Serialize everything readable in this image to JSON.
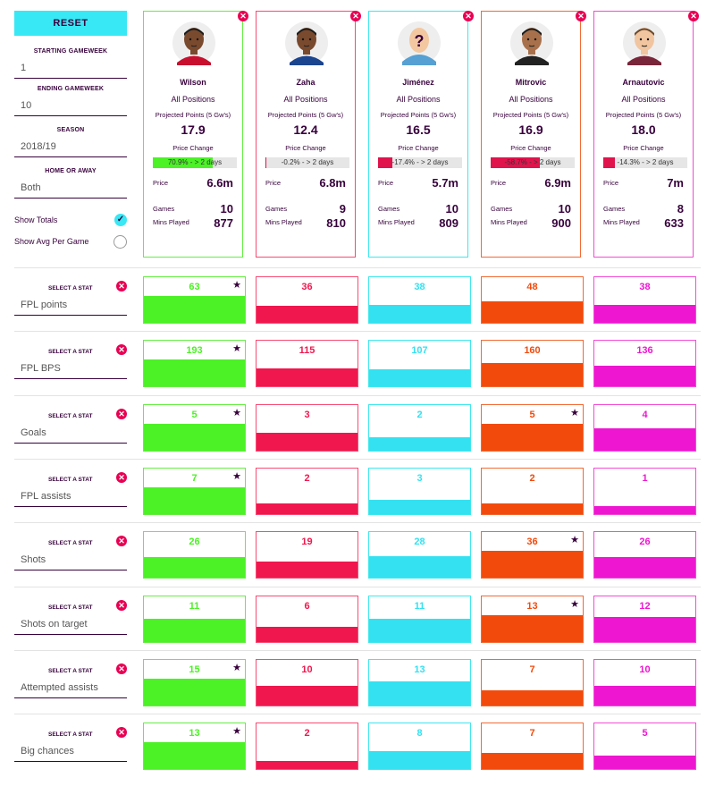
{
  "sidebar": {
    "reset_label": "RESET",
    "starting_gameweek": {
      "label": "STARTING GAMEWEEK",
      "value": "1"
    },
    "ending_gameweek": {
      "label": "ENDING GAMEWEEK",
      "value": "10"
    },
    "season": {
      "label": "SEASON",
      "value": "2018/19"
    },
    "home_away": {
      "label": "HOME OR AWAY",
      "value": "Both"
    },
    "show_totals": {
      "label": "Show Totals",
      "checked": true
    },
    "show_avg": {
      "label": "Show Avg Per Game",
      "checked": false
    }
  },
  "colors": {
    "player0": "#4cf126",
    "player1": "#f0174e",
    "player2": "#34e1f0",
    "player3": "#f24a0c",
    "player4": "#ee16d1",
    "close": "#e90052",
    "accent": "#38e8f5"
  },
  "players": [
    {
      "name": "Wilson",
      "position": "All Positions",
      "proj_label": "Projected Points (5 Gw's)",
      "proj_value": "17.9",
      "price_change_label": "Price Change",
      "price_change_text": "70.9% - > 2 days",
      "price_change_fraction": 0.709,
      "price_change_dir": "up",
      "price_label": "Price",
      "price": "6.6m",
      "games_label": "Games",
      "games": "10",
      "mins_label": "Mins Played",
      "mins": "877",
      "avatar": "player-face-dark-skin"
    },
    {
      "name": "Zaha",
      "position": "All Positions",
      "proj_label": "Projected Points (5 Gw's)",
      "proj_value": "12.4",
      "price_change_label": "Price Change",
      "price_change_text": "-0.2% - > 2 days",
      "price_change_fraction": 0.002,
      "price_change_dir": "down",
      "price_label": "Price",
      "price": "6.8m",
      "games_label": "Games",
      "games": "9",
      "mins_label": "Mins Played",
      "mins": "810",
      "avatar": "player-face-dark-skin"
    },
    {
      "name": "Jiménez",
      "position": "All Positions",
      "proj_label": "Projected Points (5 Gw's)",
      "proj_value": "16.5",
      "price_change_label": "Price Change",
      "price_change_text": "-17.4% - > 2 days",
      "price_change_fraction": 0.174,
      "price_change_dir": "down",
      "price_label": "Price",
      "price": "5.7m",
      "games_label": "Games",
      "games": "10",
      "mins_label": "Mins Played",
      "mins": "809",
      "avatar": "unknown-player"
    },
    {
      "name": "Mitrovic",
      "position": "All Positions",
      "proj_label": "Projected Points (5 Gw's)",
      "proj_value": "16.9",
      "price_change_label": "Price Change",
      "price_change_text": "-58.7% - > 2 days",
      "price_change_fraction": 0.587,
      "price_change_dir": "down",
      "price_label": "Price",
      "price": "6.9m",
      "games_label": "Games",
      "games": "10",
      "mins_label": "Mins Played",
      "mins": "900",
      "avatar": "player-face-tan-skin"
    },
    {
      "name": "Arnautovic",
      "position": "All Positions",
      "proj_label": "Projected Points (5 Gw's)",
      "proj_value": "18.0",
      "price_change_label": "Price Change",
      "price_change_text": "-14.3% - > 2 days",
      "price_change_fraction": 0.143,
      "price_change_dir": "down",
      "price_label": "Price",
      "price": "7m",
      "games_label": "Games",
      "games": "8",
      "mins_label": "Mins Played",
      "mins": "633",
      "avatar": "player-face-light-skin"
    }
  ],
  "stats": [
    {
      "select_label": "SELECT A STAT",
      "stat": "FPL points",
      "values": [
        "63",
        "36",
        "38",
        "48",
        "38"
      ],
      "best": [
        true,
        false,
        false,
        false,
        false
      ]
    },
    {
      "select_label": "SELECT A STAT",
      "stat": "FPL BPS",
      "values": [
        "193",
        "115",
        "107",
        "160",
        "136"
      ],
      "best": [
        true,
        false,
        false,
        false,
        false
      ]
    },
    {
      "select_label": "SELECT A STAT",
      "stat": "Goals",
      "values": [
        "5",
        "3",
        "2",
        "5",
        "4"
      ],
      "best": [
        true,
        false,
        false,
        true,
        false
      ]
    },
    {
      "select_label": "SELECT A STAT",
      "stat": "FPL assists",
      "values": [
        "7",
        "2",
        "3",
        "2",
        "1"
      ],
      "best": [
        true,
        false,
        false,
        false,
        false
      ]
    },
    {
      "select_label": "SELECT A STAT",
      "stat": "Shots",
      "values": [
        "26",
        "19",
        "28",
        "36",
        "26"
      ],
      "best": [
        false,
        false,
        false,
        true,
        false
      ]
    },
    {
      "select_label": "SELECT A STAT",
      "stat": "Shots on target",
      "values": [
        "11",
        "6",
        "11",
        "13",
        "12"
      ],
      "best": [
        false,
        false,
        false,
        true,
        false
      ]
    },
    {
      "select_label": "SELECT A STAT",
      "stat": "Attempted assists",
      "values": [
        "15",
        "10",
        "13",
        "7",
        "10"
      ],
      "best": [
        true,
        false,
        false,
        false,
        false
      ]
    },
    {
      "select_label": "SELECT A STAT",
      "stat": "Big chances",
      "values": [
        "13",
        "2",
        "8",
        "7",
        "5"
      ],
      "best": [
        true,
        false,
        false,
        false,
        false
      ]
    }
  ],
  "icons": {
    "close": "close-icon",
    "star": "star-icon",
    "check": "check-icon"
  },
  "glyphs": {
    "close": "✕",
    "star": "★",
    "check": "✓",
    "unknown": "?"
  }
}
